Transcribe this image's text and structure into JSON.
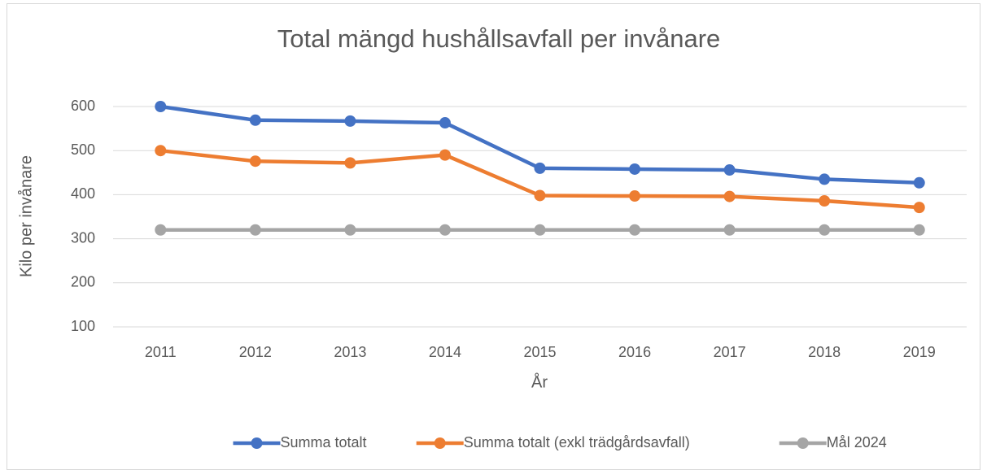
{
  "chart_data": {
    "type": "line",
    "title": "Total mängd hushållsavfall per invånare",
    "x_label": "År",
    "y_label": "Kilo per invånare",
    "categories": [
      "2011",
      "2012",
      "2013",
      "2014",
      "2015",
      "2016",
      "2017",
      "2018",
      "2019"
    ],
    "series": [
      {
        "name": "Summa totalt",
        "color": "#4472c4",
        "values": [
          600,
          569,
          567,
          563,
          460,
          458,
          456,
          435,
          427
        ]
      },
      {
        "name": "Summa totalt (exkl trädgårdsavfall)",
        "color": "#ed7d31",
        "values": [
          500,
          476,
          472,
          490,
          398,
          397,
          396,
          386,
          371
        ]
      },
      {
        "name": "Mål 2024",
        "color": "#a5a5a5",
        "values": [
          320,
          320,
          320,
          320,
          320,
          320,
          320,
          320,
          320
        ]
      }
    ],
    "ylim": [
      100,
      600
    ],
    "yticks": [
      100,
      200,
      300,
      400,
      500,
      600
    ],
    "grid": true,
    "legend": "bottom"
  }
}
